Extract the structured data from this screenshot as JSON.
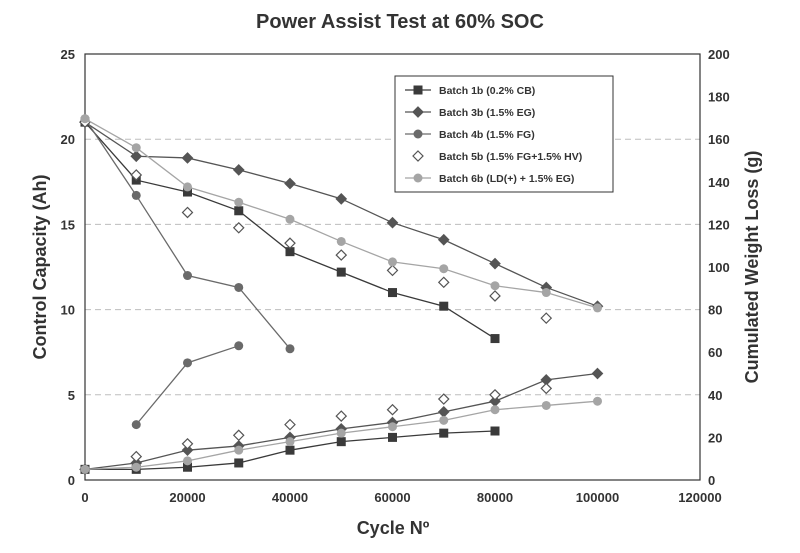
{
  "chart_data": {
    "type": "line",
    "title": "Power Assist Test at 60% SOC",
    "xlabel": "Cycle Nº",
    "ylabel_left": "Control Capacity (Ah)",
    "ylabel_right": "Cumulated Weight Loss (g)",
    "xlim": [
      0,
      120000
    ],
    "ylim_left": [
      0,
      25
    ],
    "ylim_right": [
      0,
      200
    ],
    "x_ticks": [
      "0",
      "20000",
      "40000",
      "60000",
      "80000",
      "100000",
      "120000"
    ],
    "y_left_ticks": [
      "0",
      "5",
      "10",
      "15",
      "20",
      "25"
    ],
    "y_right_ticks": [
      "0",
      "20",
      "40",
      "60",
      "80",
      "100",
      "120",
      "140",
      "160",
      "180",
      "200"
    ],
    "grid": "horizontal dashed",
    "legend_position": "top-right",
    "series": [
      {
        "name": "Batch 1b (0.2% CB)",
        "marker": "square",
        "color": "#3a3a3a",
        "capacity": [
          [
            0,
            21.0
          ],
          [
            10000,
            17.6
          ],
          [
            20000,
            16.9
          ],
          [
            30000,
            15.8
          ],
          [
            40000,
            13.4
          ],
          [
            50000,
            12.2
          ],
          [
            60000,
            11.0
          ],
          [
            70000,
            10.2
          ],
          [
            80000,
            8.3
          ]
        ],
        "weight_loss": [
          [
            0,
            5
          ],
          [
            10000,
            5
          ],
          [
            20000,
            6
          ],
          [
            30000,
            8
          ],
          [
            40000,
            14
          ],
          [
            50000,
            18
          ],
          [
            60000,
            20
          ],
          [
            70000,
            22
          ],
          [
            80000,
            23
          ]
        ]
      },
      {
        "name": "Batch 3b (1.5% EG)",
        "marker": "diamond",
        "color": "#555555",
        "capacity": [
          [
            0,
            21.0
          ],
          [
            10000,
            19.0
          ],
          [
            20000,
            18.9
          ],
          [
            30000,
            18.2
          ],
          [
            40000,
            17.4
          ],
          [
            50000,
            16.5
          ],
          [
            60000,
            15.1
          ],
          [
            70000,
            14.1
          ],
          [
            80000,
            12.7
          ],
          [
            90000,
            11.3
          ],
          [
            100000,
            10.2
          ]
        ],
        "weight_loss": [
          [
            0,
            5
          ],
          [
            10000,
            8
          ],
          [
            20000,
            14
          ],
          [
            30000,
            16
          ],
          [
            40000,
            20
          ],
          [
            50000,
            24
          ],
          [
            60000,
            27
          ],
          [
            70000,
            32
          ],
          [
            80000,
            37
          ],
          [
            90000,
            47
          ],
          [
            100000,
            50
          ]
        ]
      },
      {
        "name": "Batch 4b (1.5% FG)",
        "marker": "circle",
        "color": "#6a6a6a",
        "capacity": [
          [
            0,
            21.2
          ],
          [
            10000,
            16.7
          ],
          [
            20000,
            12.0
          ],
          [
            30000,
            11.3
          ],
          [
            40000,
            7.7
          ]
        ],
        "weight_loss": [
          [
            10000,
            26
          ],
          [
            20000,
            55
          ],
          [
            30000,
            63
          ]
        ]
      },
      {
        "name": "Batch 5b (1.5% FG+1.5% HV)",
        "marker": "open-diamond",
        "color": "#555555",
        "capacity": [
          [
            0,
            21.0
          ],
          [
            10000,
            17.9
          ],
          [
            20000,
            15.7
          ],
          [
            30000,
            14.8
          ],
          [
            40000,
            13.9
          ],
          [
            50000,
            13.2
          ],
          [
            60000,
            12.3
          ],
          [
            70000,
            11.6
          ],
          [
            80000,
            10.8
          ],
          [
            90000,
            9.5
          ]
        ],
        "weight_loss": [
          [
            10000,
            11
          ],
          [
            20000,
            17
          ],
          [
            30000,
            21
          ],
          [
            40000,
            26
          ],
          [
            50000,
            30
          ],
          [
            60000,
            33
          ],
          [
            70000,
            38
          ],
          [
            80000,
            40
          ],
          [
            90000,
            43
          ]
        ]
      },
      {
        "name": "Batch 6b (LD(+) + 1.5% EG)",
        "marker": "circle",
        "color": "#a5a5a5",
        "capacity": [
          [
            0,
            21.2
          ],
          [
            10000,
            19.5
          ],
          [
            20000,
            17.2
          ],
          [
            30000,
            16.3
          ],
          [
            40000,
            15.3
          ],
          [
            50000,
            14.0
          ],
          [
            60000,
            12.8
          ],
          [
            70000,
            12.4
          ],
          [
            80000,
            11.4
          ],
          [
            90000,
            11.0
          ],
          [
            100000,
            10.1
          ]
        ],
        "weight_loss": [
          [
            0,
            5
          ],
          [
            10000,
            6
          ],
          [
            20000,
            9
          ],
          [
            30000,
            14
          ],
          [
            40000,
            18
          ],
          [
            50000,
            22
          ],
          [
            60000,
            25
          ],
          [
            70000,
            28
          ],
          [
            80000,
            33
          ],
          [
            90000,
            35
          ],
          [
            100000,
            37
          ]
        ]
      }
    ]
  }
}
